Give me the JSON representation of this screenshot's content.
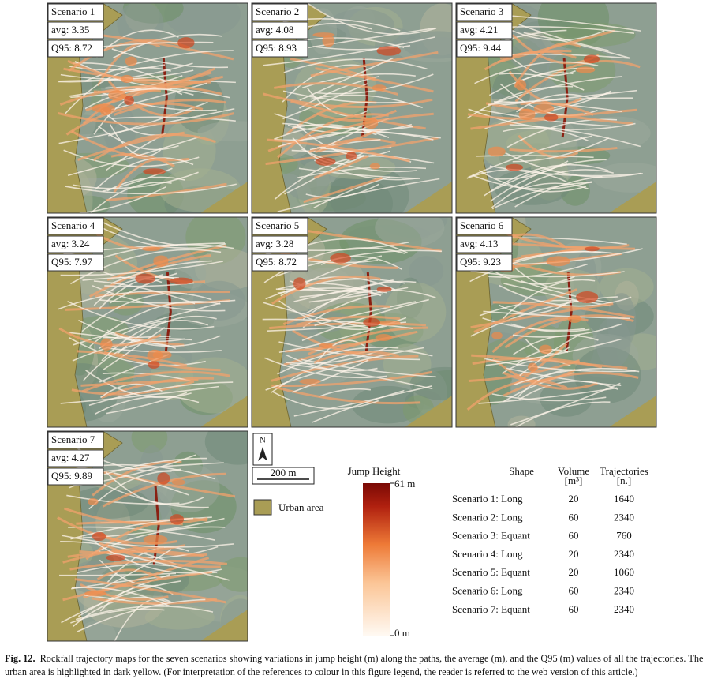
{
  "panels": [
    {
      "title": "Scenario 1",
      "avg": "avg: 3.35",
      "q95": "Q95: 8.72"
    },
    {
      "title": "Scenario 2",
      "avg": "avg: 4.08",
      "q95": "Q95: 8.93"
    },
    {
      "title": "Scenario 3",
      "avg": "avg: 4.21",
      "q95": "Q95: 9.44"
    },
    {
      "title": "Scenario 4",
      "avg": "avg: 3.24",
      "q95": "Q95: 7.97"
    },
    {
      "title": "Scenario 5",
      "avg": "avg: 3.28",
      "q95": "Q95: 8.72"
    },
    {
      "title": "Scenario 6",
      "avg": "avg: 4.13",
      "q95": "Q95: 9.23"
    },
    {
      "title": "Scenario 7",
      "avg": "avg: 4.27",
      "q95": "Q95: 9.89"
    }
  ],
  "north": "N",
  "scale": "200 m",
  "urban": "Urban area",
  "colorbar": {
    "title": "Jump Height",
    "max": "61 m",
    "min": "0 m"
  },
  "table": {
    "header": [
      "Shape",
      "Volume",
      "Trajectories"
    ],
    "units": [
      "[m³]",
      "[n.]"
    ],
    "rows": [
      [
        "Scenario 1: Long",
        "20",
        "1640"
      ],
      [
        "Scenario 2: Long",
        "60",
        "2340"
      ],
      [
        "Scenario 3: Equant",
        "60",
        "760"
      ],
      [
        "Scenario 4: Long",
        "20",
        "2340"
      ],
      [
        "Scenario 5: Equant",
        "20",
        "1060"
      ],
      [
        "Scenario 6: Long",
        "60",
        "2340"
      ],
      [
        "Scenario 7: Equant",
        "60",
        "2340"
      ]
    ]
  },
  "caption": {
    "label": "Fig. 12.",
    "text": "Rockfall trajectory maps for the seven scenarios showing variations in jump height (m) along the paths, the average (m), and the Q95 (m) values of all the trajectories. The urban area is highlighted in dark yellow. (For interpretation of the references to colour in this figure legend, the reader is referred to the web version of this article.)"
  }
}
